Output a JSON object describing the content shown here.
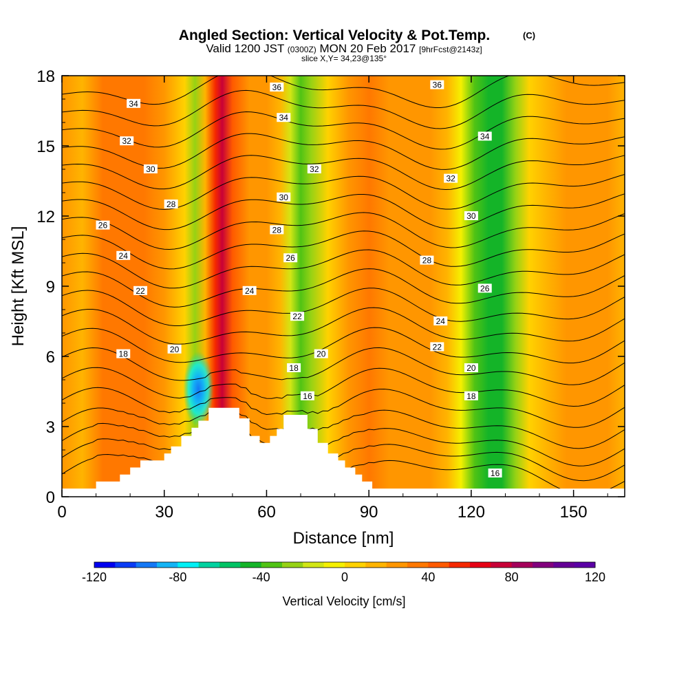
{
  "chart_data": {
    "type": "heatmap",
    "title": "Angled Section: Vertical Velocity & Pot.Temp.",
    "title_unit": "(C)",
    "subtitle_parts": [
      "Valid 1200 JST ",
      "(0300Z)",
      " MON 20 Feb 2017 ",
      "[9hrFcst@2143z]"
    ],
    "slice_label": "slice X,Y= 34,23@135°",
    "xlabel": "Distance [nm]",
    "ylabel": "Height [Kft MSL]",
    "xlim": [
      0,
      165
    ],
    "ylim": [
      0,
      18
    ],
    "x_ticks": [
      0,
      30,
      60,
      90,
      120,
      150
    ],
    "y_ticks": [
      0,
      3,
      6,
      9,
      12,
      15,
      18
    ],
    "colorbar": {
      "label": "Vertical Velocity [cm/s]",
      "min": -120,
      "max": 120,
      "step": 10,
      "tick_labels": [
        "-120",
        "-80",
        "-40",
        "0",
        "40",
        "80",
        "120"
      ],
      "tick_values": [
        -120,
        -80,
        -40,
        0,
        40,
        80,
        120
      ],
      "colors": [
        "#0000f0",
        "#0a3cf5",
        "#1478f5",
        "#14b4f5",
        "#00f0f5",
        "#00d2a0",
        "#00c364",
        "#14b428",
        "#50c314",
        "#96d214",
        "#d2e614",
        "#f5f000",
        "#ffd200",
        "#ffb400",
        "#ff9600",
        "#ff7800",
        "#ff5a00",
        "#f52800",
        "#e60014",
        "#c80037",
        "#a5005a",
        "#82007d",
        "#640096",
        "#5a00a5"
      ]
    },
    "velocity_columns": [
      {
        "x": 0,
        "v": 25
      },
      {
        "x": 6,
        "v": 18
      },
      {
        "x": 12,
        "v": 30
      },
      {
        "x": 18,
        "v": 38
      },
      {
        "x": 24,
        "v": 32
      },
      {
        "x": 30,
        "v": 20
      },
      {
        "x": 36,
        "v": 5
      },
      {
        "x": 39,
        "v": -30
      },
      {
        "x": 42,
        "v": 15
      },
      {
        "x": 45,
        "v": 55
      },
      {
        "x": 47,
        "v": 70
      },
      {
        "x": 50,
        "v": 40
      },
      {
        "x": 55,
        "v": 25
      },
      {
        "x": 60,
        "v": 20
      },
      {
        "x": 64,
        "v": 15
      },
      {
        "x": 67,
        "v": -15
      },
      {
        "x": 70,
        "v": -40
      },
      {
        "x": 73,
        "v": -25
      },
      {
        "x": 78,
        "v": 5
      },
      {
        "x": 84,
        "v": 22
      },
      {
        "x": 90,
        "v": 30
      },
      {
        "x": 96,
        "v": 28
      },
      {
        "x": 102,
        "v": 22
      },
      {
        "x": 108,
        "v": 20
      },
      {
        "x": 113,
        "v": 10
      },
      {
        "x": 117,
        "v": -10
      },
      {
        "x": 121,
        "v": -35
      },
      {
        "x": 125,
        "v": -50
      },
      {
        "x": 129,
        "v": -45
      },
      {
        "x": 133,
        "v": -25
      },
      {
        "x": 137,
        "v": 0
      },
      {
        "x": 142,
        "v": 15
      },
      {
        "x": 148,
        "v": 20
      },
      {
        "x": 154,
        "v": 25
      },
      {
        "x": 160,
        "v": 22
      },
      {
        "x": 165,
        "v": 18
      }
    ],
    "updraft_core": {
      "x": 40,
      "y": 4.6,
      "v": -90
    },
    "terrain": [
      [
        0,
        0.35
      ],
      [
        10,
        0.35
      ],
      [
        10,
        0.65
      ],
      [
        17,
        0.65
      ],
      [
        17,
        0.95
      ],
      [
        20,
        0.95
      ],
      [
        20,
        1.25
      ],
      [
        23,
        1.25
      ],
      [
        23,
        1.55
      ],
      [
        30,
        1.55
      ],
      [
        30,
        1.85
      ],
      [
        32,
        1.85
      ],
      [
        32,
        2.15
      ],
      [
        35,
        2.15
      ],
      [
        35,
        2.6
      ],
      [
        38,
        2.6
      ],
      [
        38,
        2.95
      ],
      [
        40,
        2.95
      ],
      [
        40,
        3.25
      ],
      [
        43,
        3.25
      ],
      [
        43,
        3.8
      ],
      [
        52,
        3.8
      ],
      [
        52,
        3.35
      ],
      [
        55,
        3.35
      ],
      [
        55,
        2.6
      ],
      [
        58,
        2.6
      ],
      [
        58,
        2.3
      ],
      [
        61,
        2.3
      ],
      [
        61,
        2.6
      ],
      [
        63,
        2.6
      ],
      [
        63,
        2.9
      ],
      [
        65,
        2.9
      ],
      [
        65,
        3.5
      ],
      [
        72,
        3.5
      ],
      [
        72,
        2.9
      ],
      [
        75,
        2.9
      ],
      [
        75,
        2.3
      ],
      [
        78,
        2.3
      ],
      [
        78,
        1.85
      ],
      [
        81,
        1.85
      ],
      [
        81,
        1.55
      ],
      [
        83,
        1.55
      ],
      [
        83,
        1.25
      ],
      [
        86,
        1.25
      ],
      [
        86,
        0.95
      ],
      [
        88,
        0.95
      ],
      [
        88,
        0.65
      ],
      [
        91,
        0.65
      ],
      [
        91,
        0.35
      ],
      [
        165,
        0.35
      ]
    ],
    "isotherm_levels": [
      16,
      17,
      18,
      19,
      20,
      21,
      22,
      23,
      24,
      25,
      26,
      27,
      28,
      29,
      30,
      31,
      32,
      33,
      34,
      35,
      36
    ],
    "isotherm_labels": [
      {
        "text": "36",
        "x": 63,
        "y": 17.5
      },
      {
        "text": "36",
        "x": 110,
        "y": 17.6
      },
      {
        "text": "34",
        "x": 21,
        "y": 16.8
      },
      {
        "text": "34",
        "x": 65,
        "y": 16.2
      },
      {
        "text": "34",
        "x": 124,
        "y": 15.4
      },
      {
        "text": "32",
        "x": 19,
        "y": 15.2
      },
      {
        "text": "32",
        "x": 74,
        "y": 14.0
      },
      {
        "text": "32",
        "x": 114,
        "y": 13.6
      },
      {
        "text": "30",
        "x": 26,
        "y": 14.0
      },
      {
        "text": "30",
        "x": 65,
        "y": 12.8
      },
      {
        "text": "30",
        "x": 120,
        "y": 12.0
      },
      {
        "text": "28",
        "x": 32,
        "y": 12.5
      },
      {
        "text": "28",
        "x": 63,
        "y": 11.4
      },
      {
        "text": "28",
        "x": 107,
        "y": 10.1
      },
      {
        "text": "26",
        "x": 12,
        "y": 11.6
      },
      {
        "text": "26",
        "x": 67,
        "y": 10.2
      },
      {
        "text": "26",
        "x": 124,
        "y": 8.9
      },
      {
        "text": "24",
        "x": 18,
        "y": 10.3
      },
      {
        "text": "24",
        "x": 55,
        "y": 8.8
      },
      {
        "text": "24",
        "x": 111,
        "y": 7.5
      },
      {
        "text": "22",
        "x": 23,
        "y": 8.8
      },
      {
        "text": "22",
        "x": 69,
        "y": 7.7
      },
      {
        "text": "22",
        "x": 110,
        "y": 6.4
      },
      {
        "text": "20",
        "x": 33,
        "y": 6.3
      },
      {
        "text": "20",
        "x": 76,
        "y": 6.1
      },
      {
        "text": "20",
        "x": 120,
        "y": 5.5
      },
      {
        "text": "18",
        "x": 18,
        "y": 6.1
      },
      {
        "text": "18",
        "x": 68,
        "y": 5.5
      },
      {
        "text": "18",
        "x": 120,
        "y": 4.3
      },
      {
        "text": "16",
        "x": 72,
        "y": 4.3
      },
      {
        "text": "16",
        "x": 127,
        "y": 1.0
      }
    ]
  }
}
